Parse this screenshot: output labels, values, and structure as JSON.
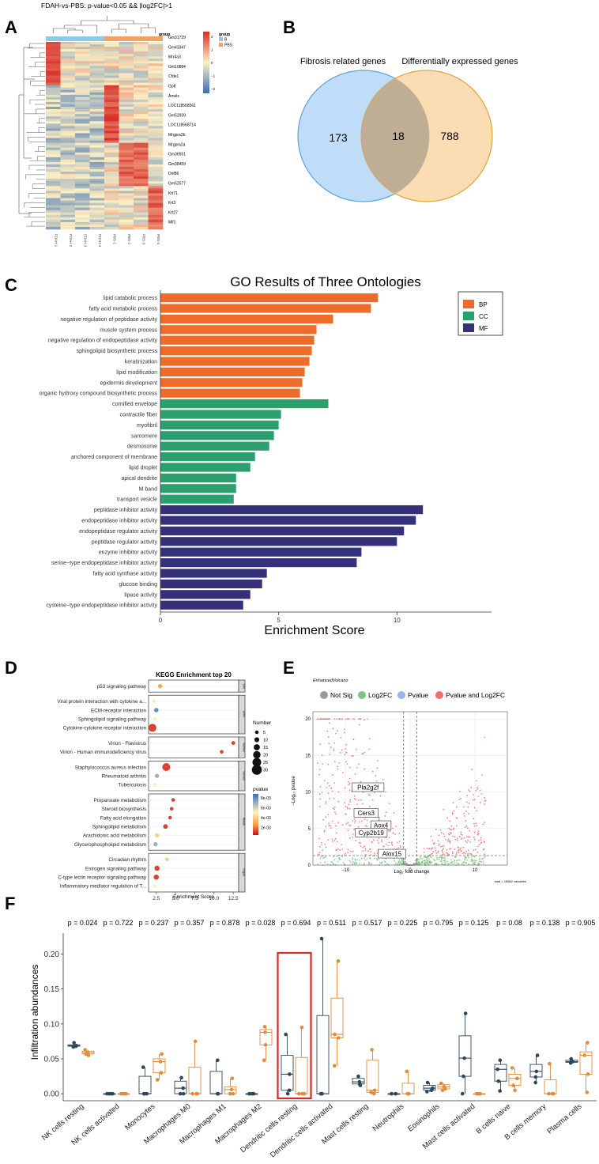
{
  "panels": {
    "A": "A",
    "B": "B",
    "C": "C",
    "D": "D",
    "E": "E",
    "F": "F"
  },
  "heatmap": {
    "title": "FDAH-vs-PBS: p-value<0.05 && |log2FC|>1",
    "group_label": "group",
    "legend_title": "group",
    "legend_groups": [
      {
        "name": "B",
        "color": "#8ecae6"
      },
      {
        "name": "PBS",
        "color": "#f4a261"
      }
    ],
    "scale_ticks": [
      "2",
      "1",
      "0",
      "−1",
      "−2"
    ],
    "genes": [
      "Gm31729",
      "Gm43347",
      "Mrr4a3",
      "Gm10884",
      "Cfde1",
      "Gp8",
      "Amelx",
      "LOC118568561",
      "Gm52939",
      "LOC118568714",
      "Mrgpra2b",
      "Mrgpra2a",
      "Gm36551",
      "Gm38459",
      "Dnf86",
      "Gm52577",
      "Krt71",
      "Krt3",
      "Krt27",
      "Mlf1"
    ],
    "samples": [
      "FDAH-1",
      "FDAH-2",
      "FDAH-3",
      "FDAH-4",
      "PBS-1",
      "PBS-2",
      "PBS-3",
      "PBS-4"
    ],
    "colors": {
      "high": "#d73027",
      "mid": "#fdf0c4",
      "low": "#3b6fb6"
    }
  },
  "venn": {
    "left_label": "Fibrosis related genes",
    "right_label": "Differentially expressed genes",
    "left_only": "173",
    "overlap": "18",
    "right_only": "788",
    "left_color": "#a9d2f5",
    "right_color": "#f8cf92"
  },
  "go_chart": {
    "chart_data": {
      "type": "bar",
      "title": "GO Results of Three Ontologies",
      "xlabel": "Enrichment Score",
      "xlim": [
        0,
        14
      ],
      "xticks": [
        "0",
        "5",
        "10"
      ],
      "legend": [
        {
          "name": "BP",
          "color": "#ee6c2b"
        },
        {
          "name": "CC",
          "color": "#2ba06e"
        },
        {
          "name": "MF",
          "color": "#35307a"
        }
      ],
      "categories": [
        "lipid catabolic process",
        "fatty acid metabolic process",
        "negative regulation of peptidase activity",
        "muscle system process",
        "negative regulation of endopeptidase activity",
        "sphingolipid biosynthetic process",
        "keratinization",
        "lipid modification",
        "epidermis development",
        "organic hydroxy compound biosynthetic process",
        "cornified envelope",
        "contractile fiber",
        "myofibril",
        "sarcomere",
        "desmosome",
        "anchored component of membrane",
        "lipid droplet",
        "apical dendrite",
        "M band",
        "transport vesicle",
        "peptidase inhibitor activity",
        "endopeptidase inhibitor activity",
        "endopeptidase regulator activity",
        "peptidase regulator activity",
        "enzyme inhibitor activity",
        "serine−type endopeptidase inhibitor activity",
        "fatty acid synthase activity",
        "glucose binding",
        "lipase activity",
        "cysteine−type endopeptidase inhibitor activity"
      ],
      "groups": [
        "BP",
        "BP",
        "BP",
        "BP",
        "BP",
        "BP",
        "BP",
        "BP",
        "BP",
        "BP",
        "CC",
        "CC",
        "CC",
        "CC",
        "CC",
        "CC",
        "CC",
        "CC",
        "CC",
        "CC",
        "MF",
        "MF",
        "MF",
        "MF",
        "MF",
        "MF",
        "MF",
        "MF",
        "MF",
        "MF"
      ],
      "values": [
        9.2,
        8.9,
        7.3,
        6.6,
        6.5,
        6.4,
        6.3,
        6.1,
        6.0,
        5.9,
        7.1,
        5.1,
        5.0,
        4.8,
        4.6,
        4.0,
        3.8,
        3.2,
        3.2,
        3.1,
        11.1,
        10.8,
        10.3,
        10.0,
        8.5,
        8.3,
        4.5,
        4.3,
        3.8,
        3.5
      ]
    }
  },
  "kegg_chart": {
    "chart_data": {
      "type": "scatter",
      "title": "KEGG Enrichment top 20",
      "xlabel": "Enrichment Score",
      "xticks": [
        "2.5",
        "5.0",
        "7.5",
        "10.0",
        "12.5"
      ],
      "xlim": [
        1.5,
        13.2
      ],
      "size_legend_title": "Number",
      "size_legend": [
        "5",
        "10",
        "15",
        "20",
        "25",
        "30"
      ],
      "color_legend_title": "pvalue",
      "color_legend": [
        "8e-03",
        "6e-03",
        "4e-03",
        "2e-03"
      ],
      "groups": [
        {
          "label": "Cell",
          "terms": [
            {
              "name": "p53 signaling pathway",
              "x": 3.0,
              "n": 7,
              "p": 0.003
            }
          ]
        },
        {
          "label": "Envir.",
          "terms": [
            {
              "name": "Viral protein interaction with cytokine a...",
              "x": 2.2,
              "n": 5,
              "p": 0.005
            },
            {
              "name": "ECM-receptor interaction",
              "x": 2.5,
              "n": 8,
              "p": 0.008
            },
            {
              "name": "Sphingolipid signaling pathway",
              "x": 2.3,
              "n": 6,
              "p": 0.005
            },
            {
              "name": "Cytokine-cytokine receptor interaction",
              "x": 2.0,
              "n": 22,
              "p": 0.001
            }
          ]
        },
        {
          "label": "Human",
          "terms": [
            {
              "name": "Virion - Flavivirus",
              "x": 12.5,
              "n": 6,
              "p": 0.001
            },
            {
              "name": "Virion - Human immunodeficiency virus",
              "x": 11.0,
              "n": 5,
              "p": 0.001
            }
          ]
        },
        {
          "label": "Human",
          "terms": [
            {
              "name": "Staphylococcus aureus infection",
              "x": 3.8,
              "n": 22,
              "p": 0.001
            },
            {
              "name": "Rheumatoid arthritis",
              "x": 2.6,
              "n": 7,
              "p": 0.007
            },
            {
              "name": "Tuberculosis",
              "x": 2.3,
              "n": 5,
              "p": 0.005
            }
          ]
        },
        {
          "label": "Metab.",
          "terms": [
            {
              "name": "Propanoate metabolism",
              "x": 4.7,
              "n": 5,
              "p": 0.001
            },
            {
              "name": "Steroid biosynthesis",
              "x": 4.5,
              "n": 5,
              "p": 0.001
            },
            {
              "name": "Fatty acid elongation",
              "x": 4.3,
              "n": 5,
              "p": 0.001
            },
            {
              "name": "Sphingolipid metabolism",
              "x": 3.7,
              "n": 9,
              "p": 0.001
            },
            {
              "name": "Arachidonic acid metabolism",
              "x": 2.6,
              "n": 7,
              "p": 0.004
            },
            {
              "name": "Glycerophospholipid metabolism",
              "x": 2.4,
              "n": 7,
              "p": 0.007
            }
          ]
        },
        {
          "label": "Organ.",
          "terms": [
            {
              "name": "Circadian rhythm",
              "x": 3.9,
              "n": 5,
              "p": 0.004
            },
            {
              "name": "Estrogen signaling pathway",
              "x": 2.6,
              "n": 11,
              "p": 0.001
            },
            {
              "name": "C-type lectin receptor signaling pathway",
              "x": 2.5,
              "n": 11,
              "p": 0.001
            },
            {
              "name": "Inflammatory mediator regulation of T...",
              "x": 2.3,
              "n": 4,
              "p": 0.005
            }
          ]
        }
      ]
    }
  },
  "volcano": {
    "chart_data": {
      "type": "scatter",
      "title": "EnhancedVolcano",
      "xlabel": "Log₂ fold change",
      "ylabel": "−Log₁₀ pvalue",
      "xlim": [
        -15,
        15
      ],
      "ylim": [
        0,
        21
      ],
      "xticks": [
        "−10",
        "0",
        "10"
      ],
      "yticks": [
        "0",
        "5",
        "10",
        "15",
        "20"
      ],
      "legend": [
        {
          "name": "Not Sig",
          "color": "#9a9a9a"
        },
        {
          "name": "Log2FC",
          "color": "#7cc47f"
        },
        {
          "name": "Pvalue",
          "color": "#9fb2e8"
        },
        {
          "name": "Pvalue and Log2FC",
          "color": "#ef6f6f"
        }
      ],
      "labels": [
        {
          "text": "Pla2g2f",
          "x": -6.5,
          "y": 10.5
        },
        {
          "text": "Cers3",
          "x": -6.8,
          "y": 7.0
        },
        {
          "text": "Aox4",
          "x": -4.5,
          "y": 5.3
        },
        {
          "text": "Cyp2b19",
          "x": -6.0,
          "y": 4.3
        },
        {
          "text": "Alox15",
          "x": -2.8,
          "y": 1.4
        }
      ],
      "footnote": "total = 16562 variables"
    }
  },
  "boxplot": {
    "chart_data": {
      "type": "box",
      "ylabel": "Infiltration abundances",
      "ylim": [
        -0.01,
        0.23
      ],
      "yticks": [
        "0.00",
        "0.05",
        "0.10",
        "0.15",
        "0.20"
      ],
      "group_colors": [
        "#2f4858",
        "#e08c3a"
      ],
      "highlight_color": "#d62828",
      "highlight_index": 6,
      "categories": [
        "NK cells resting",
        "NK cells activated",
        "Monocytes",
        "Macrophages M0",
        "Macrophages M1",
        "Macrophages M2",
        "Dendritic cells resting",
        "Dendritic cells activated",
        "Mast cells resting",
        "Neutrophils",
        "Eosinophils",
        "Mast cells activated",
        "B cells naive",
        "B cells memory",
        "Plasma cells"
      ],
      "pvalues": [
        "p = 0.024",
        "p = 0.722",
        "p = 0.237",
        "p = 0.357",
        "p = 0.878",
        "p = 0.028",
        "p = 0.694",
        "p = 0.511",
        "p = 0.517",
        "p = 0.225",
        "p = 0.795",
        "p = 0.125",
        "p = 0.08",
        "p = 0.138",
        "p = 0.905"
      ],
      "boxes": [
        [
          [
            0.067,
            0.068,
            0.069,
            0.07,
            0.073
          ],
          [
            0.055,
            0.057,
            0.059,
            0.061,
            0.063
          ]
        ],
        [
          [
            0,
            0,
            0,
            0,
            0
          ],
          [
            0,
            0,
            0,
            0,
            0
          ]
        ],
        [
          [
            0,
            0,
            0,
            0.025,
            0.038
          ],
          [
            0.02,
            0.03,
            0.046,
            0.05,
            0.057
          ]
        ],
        [
          [
            0,
            0,
            0.008,
            0.018,
            0.023
          ],
          [
            0,
            0,
            0,
            0.038,
            0.075
          ]
        ],
        [
          [
            0,
            0,
            0,
            0.032,
            0.048
          ],
          [
            0,
            0,
            0.006,
            0.01,
            0.022
          ]
        ],
        [
          [
            0,
            0,
            0,
            0,
            0
          ],
          [
            0.048,
            0.07,
            0.088,
            0.092,
            0.096
          ]
        ],
        [
          [
            0,
            0.005,
            0.028,
            0.055,
            0.085
          ],
          [
            0,
            0,
            0,
            0.052,
            0.095
          ]
        ],
        [
          [
            0,
            0,
            0,
            0.112,
            0.222
          ],
          [
            0.04,
            0.08,
            0.085,
            0.137,
            0.19
          ]
        ],
        [
          [
            0.012,
            0.014,
            0.017,
            0.022,
            0.025
          ],
          [
            0,
            0.002,
            0.005,
            0.048,
            0.063
          ]
        ],
        [
          [
            0,
            0,
            0,
            0,
            0
          ],
          [
            0,
            0,
            0,
            0.015,
            0.032
          ]
        ],
        [
          [
            0.003,
            0.005,
            0.008,
            0.012,
            0.016
          ],
          [
            0.005,
            0.007,
            0.01,
            0.013,
            0.015
          ]
        ],
        [
          [
            0,
            0.025,
            0.051,
            0.083,
            0.115
          ],
          [
            0,
            0,
            0,
            0,
            0
          ]
        ],
        [
          [
            0.004,
            0.018,
            0.035,
            0.042,
            0.048
          ],
          [
            0.005,
            0.012,
            0.022,
            0.028,
            0.037
          ]
        ],
        [
          [
            0.016,
            0.024,
            0.032,
            0.042,
            0.055
          ],
          [
            0,
            0,
            0,
            0.02,
            0.043
          ]
        ],
        [
          [
            0.044,
            0.045,
            0.046,
            0.048,
            0.05
          ],
          [
            0.002,
            0.028,
            0.055,
            0.06,
            0.073
          ]
        ]
      ]
    }
  }
}
